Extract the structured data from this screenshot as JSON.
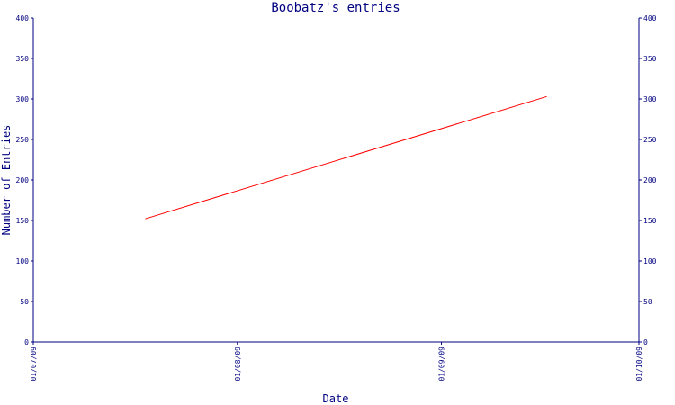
{
  "chart_data": {
    "type": "line",
    "title": "Boobatz's entries",
    "xlabel": "Date",
    "ylabel": "Number of Entries",
    "x_axis_type": "date",
    "x_tick_labels": [
      "01/07/09",
      "01/08/09",
      "01/09/09",
      "01/10/09"
    ],
    "xlim": [
      "01/07/09",
      "01/10/09"
    ],
    "ylim": [
      0,
      400
    ],
    "y_ticks": [
      0,
      50,
      100,
      150,
      200,
      250,
      300,
      350,
      400
    ],
    "grid": false,
    "series": [
      {
        "color": "#ff0000",
        "points": [
          {
            "x": "18/07/09",
            "y": 152
          },
          {
            "x": "17/09/09",
            "y": 303
          }
        ]
      }
    ]
  }
}
